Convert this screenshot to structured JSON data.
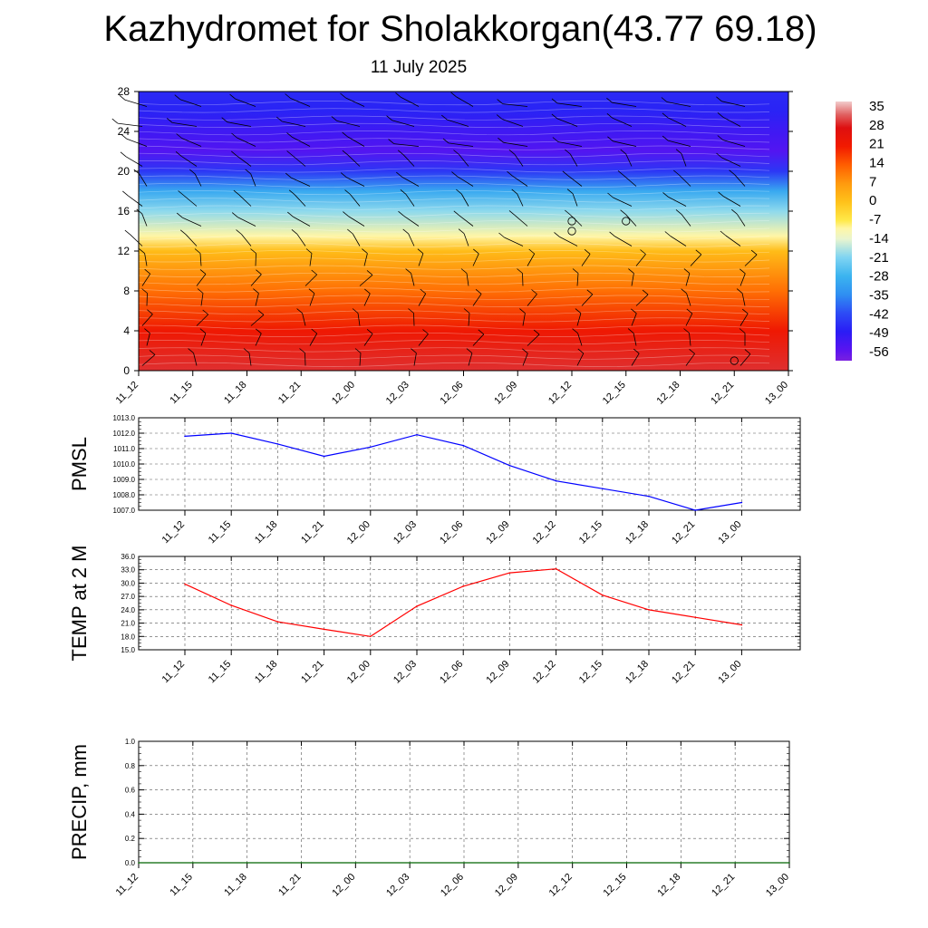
{
  "header": {
    "title": "Kazhydromet for Sholakkorgan(43.77 69.18)",
    "date": "11 July 2025"
  },
  "chart_data": [
    {
      "type": "heatmap",
      "xlabels": [
        "11_12",
        "11_15",
        "11_18",
        "11_21",
        "12_00",
        "12_03",
        "12_06",
        "12_09",
        "12_12",
        "12_15",
        "12_18",
        "12_21",
        "13_00"
      ],
      "yticks": [
        0,
        4,
        8,
        12,
        16,
        20,
        24,
        28
      ],
      "ylim": [
        0,
        28
      ],
      "colorbar_labels": [
        "35",
        "28",
        "21",
        "14",
        "7",
        "0",
        "-7",
        "-14",
        "-21",
        "-28",
        "-35",
        "-42",
        "-49",
        "-56"
      ],
      "colorbar_range": [
        -60,
        38
      ],
      "temperature_by_level": [
        {
          "y": 0,
          "value": 30
        },
        {
          "y": 4,
          "value": 22
        },
        {
          "y": 8,
          "value": 12
        },
        {
          "y": 12,
          "value": 1
        },
        {
          "y": 13.5,
          "value": -10
        },
        {
          "y": 16,
          "value": -20
        },
        {
          "y": 18,
          "value": -30
        },
        {
          "y": 20,
          "value": -45
        },
        {
          "y": 22,
          "value": -55
        },
        {
          "y": 24,
          "value": -52
        },
        {
          "y": 26,
          "value": -48
        },
        {
          "y": 28,
          "value": -47
        }
      ],
      "calm_markers": [
        {
          "x": "12_12",
          "y": 15
        },
        {
          "x": "12_12",
          "y": 14
        },
        {
          "x": "12_15",
          "y": 15
        },
        {
          "x": "12_21",
          "y": 1
        }
      ]
    },
    {
      "type": "line",
      "ylabel": "PMSL",
      "ylim": [
        1007.0,
        1013.0
      ],
      "yticks": [
        "1013.0",
        "1012.0",
        "1011.0",
        "1010.0",
        "1009.0",
        "1008.0",
        "1007.0"
      ],
      "x": [
        "11_12",
        "11_15",
        "11_18",
        "11_21",
        "12_00",
        "12_03",
        "12_06",
        "12_09",
        "12_12",
        "12_15",
        "12_18",
        "12_21",
        "13_00"
      ],
      "series": [
        {
          "values": [
            1011.8,
            1012.0,
            1011.3,
            1010.5,
            1011.1,
            1011.9,
            1011.2,
            1009.9,
            1008.9,
            1008.4,
            1007.9,
            1007.0,
            1007.5
          ],
          "color": "#0000ff"
        }
      ]
    },
    {
      "type": "line",
      "ylabel": "TEMP at 2 M",
      "ylim": [
        15.0,
        36.0
      ],
      "yticks": [
        "36.0",
        "33.0",
        "30.0",
        "27.0",
        "24.0",
        "21.0",
        "18.0",
        "15.0"
      ],
      "x": [
        "11_12",
        "11_15",
        "11_18",
        "11_21",
        "12_00",
        "12_03",
        "12_06",
        "12_09",
        "12_12",
        "12_15",
        "12_18",
        "12_21",
        "13_00"
      ],
      "series": [
        {
          "values": [
            29.8,
            25.0,
            21.3,
            19.6,
            18.0,
            24.8,
            29.3,
            32.3,
            33.2,
            27.3,
            24.0,
            22.3,
            20.6
          ],
          "color": "#ff0000"
        }
      ]
    },
    {
      "type": "line",
      "ylabel": "PRECIP, mm",
      "ylim": [
        0.0,
        1.0
      ],
      "yticks": [
        "1.0",
        "0.8",
        "0.6",
        "0.4",
        "0.2",
        "0.0"
      ],
      "x": [
        "11_12",
        "11_15",
        "11_18",
        "11_21",
        "12_00",
        "12_03",
        "12_06",
        "12_09",
        "12_12",
        "12_15",
        "12_18",
        "12_21",
        "13_00"
      ],
      "series": [
        {
          "values": [
            0,
            0,
            0,
            0,
            0,
            0,
            0,
            0,
            0,
            0,
            0,
            0,
            0
          ],
          "color": "#006400"
        }
      ]
    }
  ]
}
